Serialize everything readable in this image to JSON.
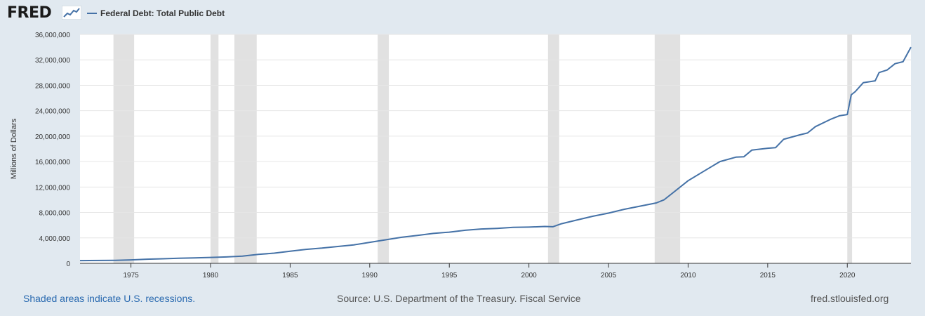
{
  "header": {
    "logo_text": "FRED",
    "logo_icon": "line-graph-icon",
    "legend_label": "Federal Debt: Total Public Debt",
    "series_color": "#4572a7"
  },
  "footer": {
    "recession_note": "Shaded areas indicate U.S. recessions.",
    "source": "Source: U.S. Department of the Treasury. Fiscal Service",
    "url": "fred.stlouisfed.org"
  },
  "chart_data": {
    "type": "line",
    "title": "",
    "xlabel": "",
    "ylabel": "Millions of Dollars",
    "xlim": [
      1971.8,
      2024.0
    ],
    "ylim": [
      0,
      36000000
    ],
    "x_ticks": [
      1975,
      1980,
      1985,
      1990,
      1995,
      2000,
      2005,
      2010,
      2015,
      2020
    ],
    "y_ticks": [
      {
        "value": 0,
        "label": "0"
      },
      {
        "value": 4000000,
        "label": "4,000,000"
      },
      {
        "value": 8000000,
        "label": "8,000,000"
      },
      {
        "value": 12000000,
        "label": "12,000,000"
      },
      {
        "value": 16000000,
        "label": "16,000,000"
      },
      {
        "value": 20000000,
        "label": "20,000,000"
      },
      {
        "value": 24000000,
        "label": "24,000,000"
      },
      {
        "value": 28000000,
        "label": "28,000,000"
      },
      {
        "value": 32000000,
        "label": "32,000,000"
      },
      {
        "value": 36000000,
        "label": "36,000,000"
      }
    ],
    "grid": true,
    "recession_color": "#e1e1e1",
    "recessions": [
      [
        1973.9,
        1975.2
      ],
      [
        1980.0,
        1980.5
      ],
      [
        1981.5,
        1982.9
      ],
      [
        1990.5,
        1991.2
      ],
      [
        2001.2,
        2001.9
      ],
      [
        2007.9,
        2009.5
      ],
      [
        2020.0,
        2020.3
      ]
    ],
    "series": [
      {
        "x": [
          1971.8,
          1974,
          1975,
          1976,
          1977,
          1978,
          1979,
          1980,
          1981,
          1982,
          1983,
          1984,
          1985,
          1986,
          1987,
          1988,
          1989,
          1990,
          1991,
          1992,
          1993,
          1994,
          1995,
          1996,
          1997,
          1998,
          1999,
          2000,
          2001,
          2001.5,
          2002,
          2003,
          2004,
          2005,
          2006,
          2007,
          2008,
          2008.5,
          2009,
          2010,
          2011,
          2012,
          2013,
          2013.5,
          2014,
          2015,
          2015.5,
          2016,
          2017,
          2017.5,
          2018,
          2019,
          2019.5,
          2020,
          2020.25,
          2020.5,
          2021,
          2021.5,
          2021.75,
          2022,
          2022.5,
          2023,
          2023.5,
          2024.0
        ],
        "y": [
          430000,
          480000,
          540000,
          650000,
          720000,
          800000,
          850000,
          930000,
          1000000,
          1140000,
          1400000,
          1600000,
          1900000,
          2200000,
          2400000,
          2650000,
          2900000,
          3300000,
          3700000,
          4100000,
          4400000,
          4700000,
          4900000,
          5200000,
          5400000,
          5500000,
          5650000,
          5700000,
          5800000,
          5750000,
          6200000,
          6800000,
          7400000,
          7900000,
          8500000,
          9000000,
          9500000,
          10000000,
          11000000,
          13000000,
          14500000,
          16000000,
          16700000,
          16750000,
          17800000,
          18100000,
          18200000,
          19500000,
          20200000,
          20500000,
          21500000,
          22700000,
          23200000,
          23400000,
          26500000,
          27000000,
          28400000,
          28600000,
          28700000,
          30000000,
          30400000,
          31400000,
          31700000,
          34000000
        ]
      }
    ]
  }
}
